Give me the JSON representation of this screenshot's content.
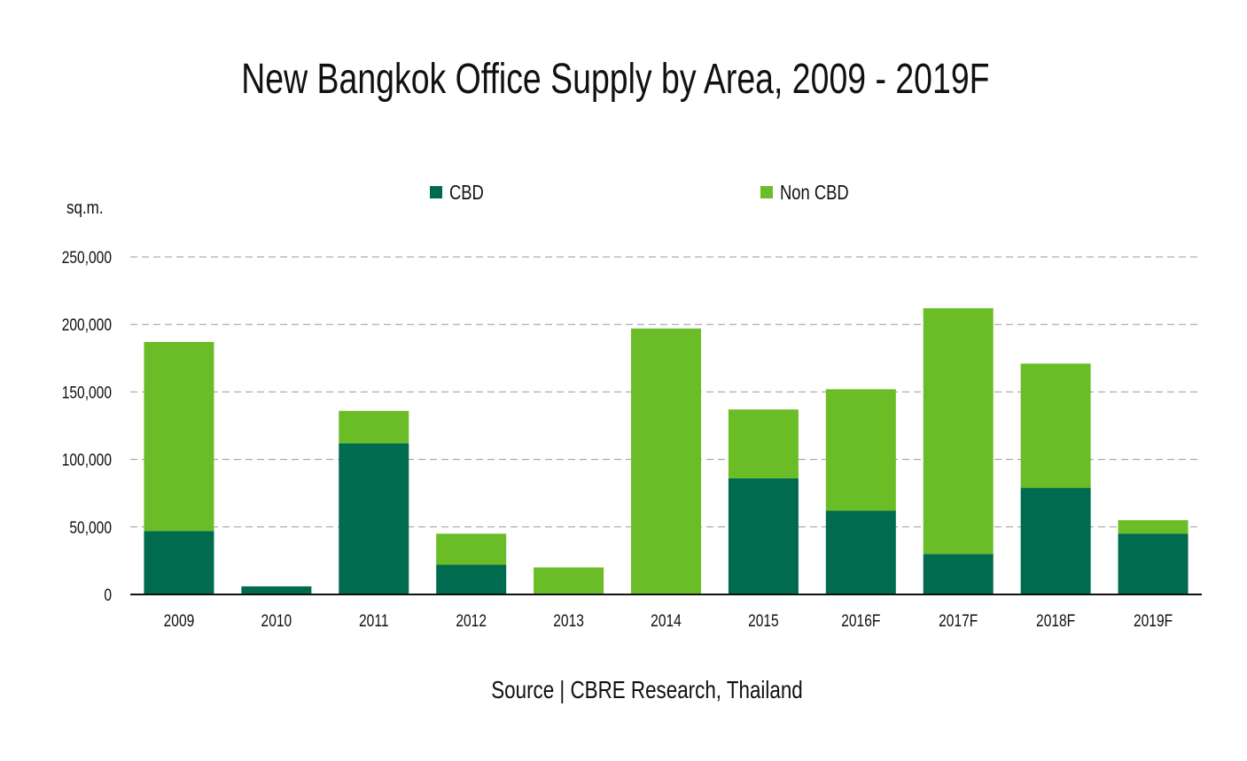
{
  "chart_data": {
    "type": "bar",
    "stacked": true,
    "title": "New Bangkok Office Supply by Area, 2009 - 2019F",
    "ylabel": "sq.m.",
    "xlabel": "",
    "ylim": [
      0,
      250000
    ],
    "yticks": [
      0,
      50000,
      100000,
      150000,
      200000,
      250000
    ],
    "ytick_labels": [
      "0",
      "50,000",
      "100,000",
      "150,000",
      "200,000",
      "250,000"
    ],
    "grid": true,
    "legend_position": "top",
    "categories": [
      "2009",
      "2010",
      "2011",
      "2012",
      "2013",
      "2014",
      "2015",
      "2016F",
      "2017F",
      "2018F",
      "2019F"
    ],
    "series": [
      {
        "name": "CBD",
        "color": "#006B4F",
        "values": [
          47000,
          6000,
          112000,
          22000,
          0,
          0,
          86000,
          62000,
          30000,
          79000,
          45000
        ]
      },
      {
        "name": "Non CBD",
        "color": "#6BBD28",
        "values": [
          140000,
          0,
          24000,
          23000,
          20000,
          197000,
          51000,
          90000,
          182000,
          92000,
          10000
        ]
      }
    ]
  },
  "source": "Source | CBRE Research, Thailand"
}
